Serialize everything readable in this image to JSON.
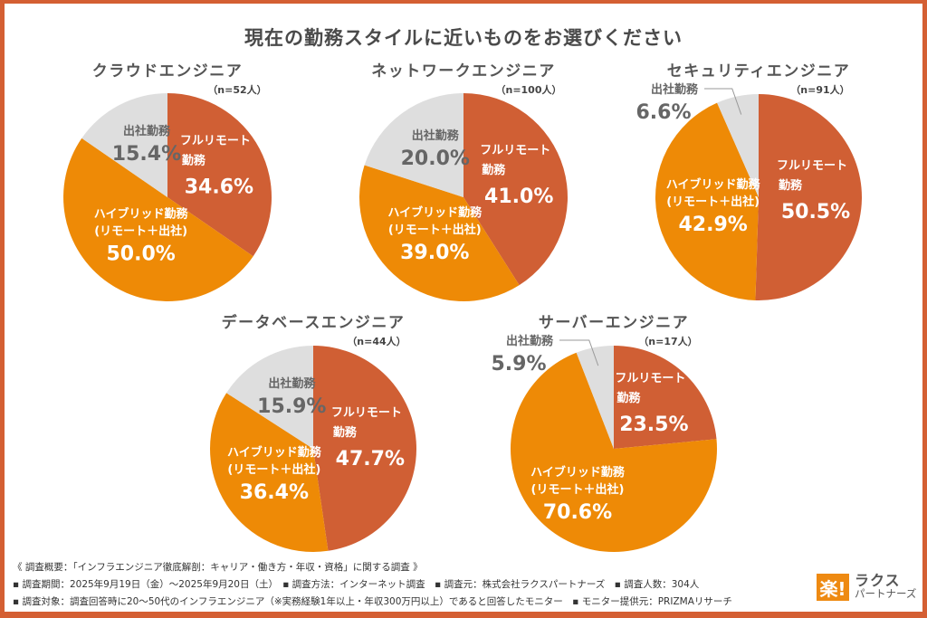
{
  "title": "現在の勤務スタイルに近いものをお選びください",
  "colors": {
    "full_remote": "#d05f34",
    "hybrid": "#ee8a06",
    "office": "#dedede",
    "frame": "#d45f33"
  },
  "chart_data": [
    {
      "type": "pie",
      "title": "クラウドエンジニア",
      "n": "（n=52人）",
      "categories": [
        "フルリモート勤務",
        "ハイブリッド勤務(リモート＋出社)",
        "出社勤務"
      ],
      "values": [
        34.6,
        50.0,
        15.4
      ],
      "labels": [
        "34.6%",
        "50.0%",
        "15.4%"
      ]
    },
    {
      "type": "pie",
      "title": "ネットワークエンジニア",
      "n": "（n=100人）",
      "categories": [
        "フルリモート勤務",
        "ハイブリッド勤務(リモート＋出社)",
        "出社勤務"
      ],
      "values": [
        41.0,
        39.0,
        20.0
      ],
      "labels": [
        "41.0%",
        "39.0%",
        "20.0%"
      ]
    },
    {
      "type": "pie",
      "title": "セキュリティエンジニア",
      "n": "（n=91人）",
      "categories": [
        "フルリモート勤務",
        "ハイブリッド勤務(リモート＋出社)",
        "出社勤務"
      ],
      "values": [
        50.5,
        42.9,
        6.6
      ],
      "labels": [
        "50.5%",
        "42.9%",
        "6.6%"
      ]
    },
    {
      "type": "pie",
      "title": "データベースエンジニア",
      "n": "（n=44人）",
      "categories": [
        "フルリモート勤務",
        "ハイブリッド勤務(リモート＋出社)",
        "出社勤務"
      ],
      "values": [
        47.7,
        36.4,
        15.9
      ],
      "labels": [
        "47.7%",
        "36.4%",
        "15.9%"
      ]
    },
    {
      "type": "pie",
      "title": "サーバーエンジニア",
      "n": "（n=17人）",
      "categories": [
        "フルリモート勤務",
        "ハイブリッド勤務(リモート＋出社)",
        "出社勤務"
      ],
      "values": [
        23.5,
        70.6,
        5.9
      ],
      "labels": [
        "23.5%",
        "70.6%",
        "5.9%"
      ]
    }
  ],
  "slice_text": {
    "full_remote_l1": "フルリモート",
    "full_remote_l2": "勤務",
    "hybrid_l1": "ハイブリッド勤務",
    "hybrid_l2": "(リモート＋出社)",
    "office": "出社勤務"
  },
  "footer": {
    "line1": "《 調査概要：「インフラエンジニア徹底解剖：キャリア・働き方・年収・資格」に関する調査 》",
    "line2": "▪ 調査期間：2025年9月19日（金）～2025年9月20日（土）　▪ 調査方法：インターネット調査　▪ 調査元：株式会社ラクスパートナーズ　▪ 調査人数：304人",
    "line3": "▪ 調査対象：調査回答時に20〜50代のインフラエンジニア（※実務経験1年以上・年収300万円以上）であると回答したモニター　▪ モニター提供元：PRIZMAリサーチ"
  },
  "logo": {
    "mark": "楽!",
    "line1": "ラクス",
    "line2": "パートナーズ"
  }
}
